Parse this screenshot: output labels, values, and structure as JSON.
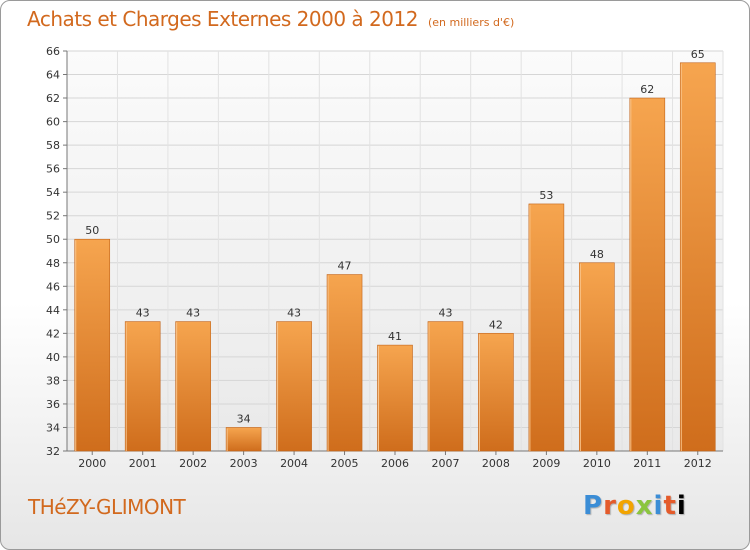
{
  "header": {
    "title": "Achats et Charges Externes 2000 à 2012",
    "subtitle": "(en milliers d'€)"
  },
  "footer": {
    "place": "THéZY-GLIMONT",
    "logo": "Proxiti"
  },
  "colors": {
    "accent": "#d2691e",
    "bar_light": "#f6a54f",
    "bar_dark": "#cf6d1c"
  },
  "chart_data": {
    "type": "bar",
    "title": "Achats et Charges Externes 2000 à 2012",
    "subtitle": "(en milliers d'€)",
    "xlabel": "",
    "ylabel": "",
    "categories": [
      "2000",
      "2001",
      "2002",
      "2003",
      "2004",
      "2005",
      "2006",
      "2007",
      "2008",
      "2009",
      "2010",
      "2011",
      "2012"
    ],
    "values": [
      50,
      43,
      43,
      34,
      43,
      47,
      41,
      43,
      42,
      53,
      48,
      62,
      65
    ],
    "ylim": [
      32,
      66
    ],
    "yticks": [
      32,
      34,
      36,
      38,
      40,
      42,
      44,
      46,
      48,
      50,
      52,
      54,
      56,
      58,
      60,
      62,
      64,
      66
    ],
    "grid": true,
    "legend": "none"
  }
}
